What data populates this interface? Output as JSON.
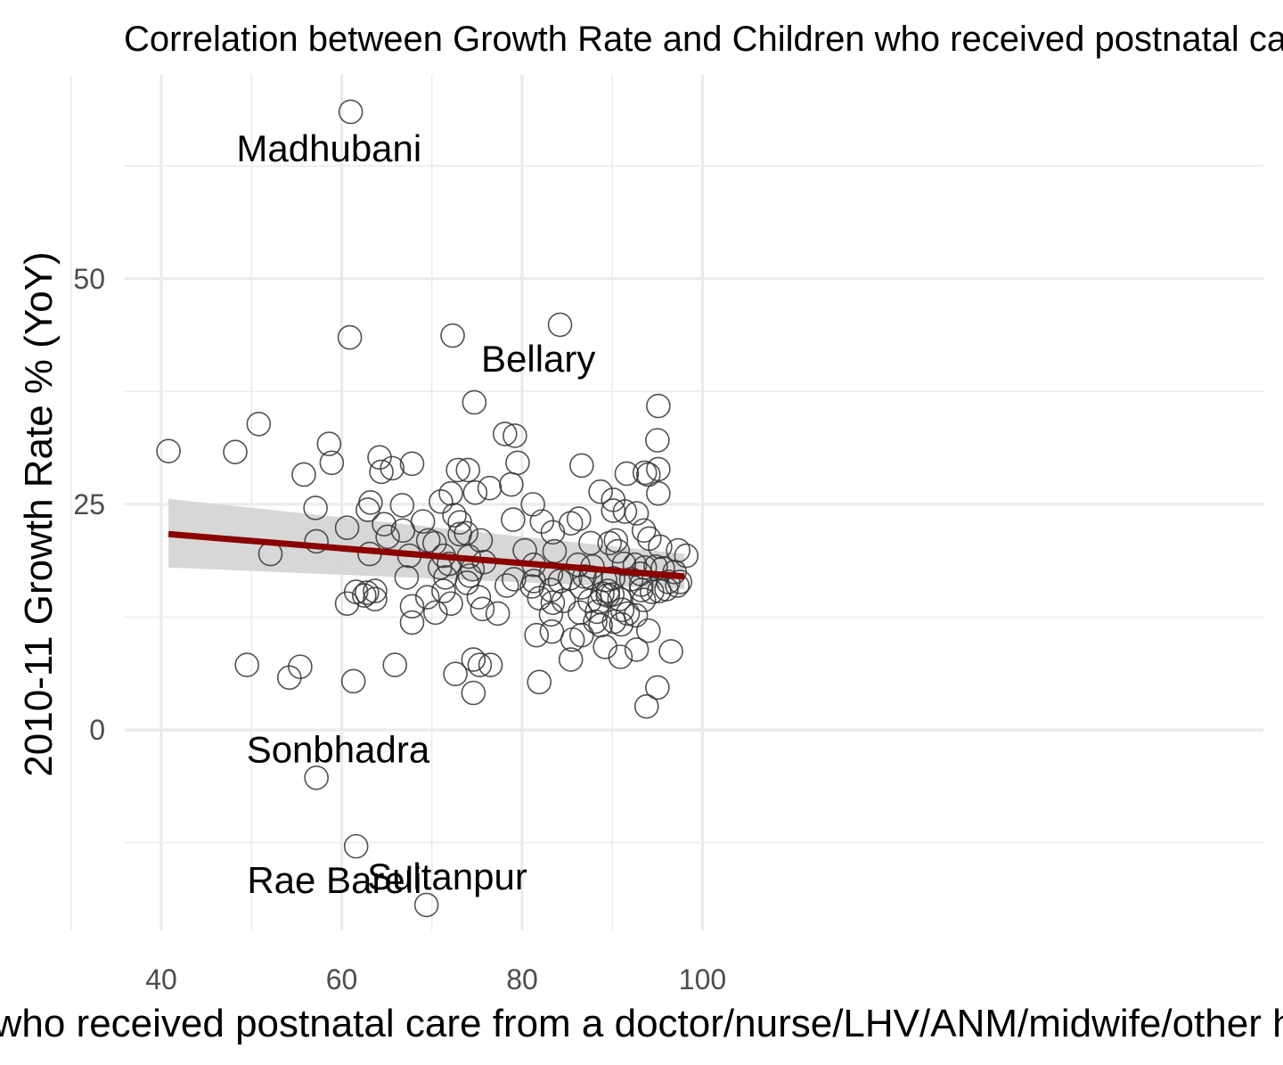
{
  "chart_data": {
    "type": "scatter",
    "title": "Correlation between Growth Rate and Children who received postnatal care",
    "xlabel": "Children who received postnatal care from a doctor/nurse/LHV/ANM/midwife/other health personnel",
    "ylabel": "2010-11 Growth Rate % (YoY)",
    "xlim": [
      40,
      100
    ],
    "ylim": [
      -22,
      73
    ],
    "x_ticks": [
      "40",
      "60",
      "80",
      "100"
    ],
    "y_ticks": [
      "0",
      "25",
      "50"
    ],
    "x_tick_values": [
      40,
      60,
      80,
      100
    ],
    "y_tick_values": [
      0,
      25,
      50
    ],
    "grid": true,
    "colors": {
      "trend": "#8b0000",
      "band": "#d3d3d3",
      "points": "#333333",
      "grid": "#ebebeb"
    },
    "trend": {
      "method": "linear",
      "x": [
        40.8,
        98.0
      ],
      "y": [
        21.7,
        17.0
      ],
      "band_lower": [
        18.0,
        15.6
      ],
      "band_upper": [
        25.6,
        19.5
      ]
    },
    "labels": [
      {
        "text": "Madhubani",
        "x": 58.6,
        "y": 64.5
      },
      {
        "text": "Bellary",
        "x": 81.8,
        "y": 41.2
      },
      {
        "text": "Sonbhadra",
        "x": 59.6,
        "y": -2.1
      },
      {
        "text": "Rae Bareli",
        "x": 59.2,
        "y": -16.6
      },
      {
        "text": "Sultanpur",
        "x": 71.7,
        "y": -16.2
      }
    ],
    "points": [
      [
        61.0,
        68.5
      ],
      [
        60.9,
        43.5
      ],
      [
        72.3,
        43.7
      ],
      [
        84.2,
        44.9
      ],
      [
        74.7,
        36.3
      ],
      [
        95.1,
        35.9
      ],
      [
        78.1,
        32.8
      ],
      [
        79.2,
        32.6
      ],
      [
        58.6,
        31.7
      ],
      [
        95.0,
        32.1
      ],
      [
        50.8,
        33.9
      ],
      [
        40.8,
        30.9
      ],
      [
        48.2,
        30.8
      ],
      [
        64.2,
        30.2
      ],
      [
        58.9,
        29.6
      ],
      [
        67.8,
        29.5
      ],
      [
        79.5,
        29.6
      ],
      [
        86.6,
        29.3
      ],
      [
        65.6,
        29.0
      ],
      [
        72.9,
        28.8
      ],
      [
        74.0,
        28.8
      ],
      [
        55.8,
        28.3
      ],
      [
        64.4,
        28.6
      ],
      [
        91.6,
        28.4
      ],
      [
        93.6,
        28.5
      ],
      [
        95.1,
        28.9
      ],
      [
        94.0,
        28.3
      ],
      [
        78.8,
        27.2
      ],
      [
        95.1,
        26.2
      ],
      [
        72.1,
        26.2
      ],
      [
        74.8,
        26.3
      ],
      [
        76.4,
        26.8
      ],
      [
        88.7,
        26.4
      ],
      [
        90.1,
        25.5
      ],
      [
        71.0,
        25.3
      ],
      [
        57.1,
        24.6
      ],
      [
        62.9,
        24.4
      ],
      [
        63.2,
        25.2
      ],
      [
        66.7,
        24.9
      ],
      [
        81.2,
        25.0
      ],
      [
        72.5,
        23.8
      ],
      [
        90.1,
        24.3
      ],
      [
        91.4,
        24.2
      ],
      [
        92.7,
        24.0
      ],
      [
        73.1,
        23.0
      ],
      [
        79.0,
        23.3
      ],
      [
        82.2,
        23.1
      ],
      [
        85.4,
        22.9
      ],
      [
        86.3,
        23.4
      ],
      [
        69.0,
        23.1
      ],
      [
        64.7,
        22.8
      ],
      [
        60.6,
        22.4
      ],
      [
        66.8,
        22.1
      ],
      [
        93.5,
        22.1
      ],
      [
        83.4,
        21.9
      ],
      [
        73.1,
        21.7
      ],
      [
        75.4,
        21.0
      ],
      [
        73.8,
        21.8
      ],
      [
        65.1,
        21.4
      ],
      [
        69.6,
        21.0
      ],
      [
        70.3,
        20.7
      ],
      [
        57.2,
        20.9
      ],
      [
        89.7,
        20.7
      ],
      [
        87.6,
        20.7
      ],
      [
        90.4,
        21.0
      ],
      [
        94.1,
        21.2
      ],
      [
        95.3,
        20.3
      ],
      [
        80.3,
        19.9
      ],
      [
        83.6,
        19.8
      ],
      [
        90.6,
        19.8
      ],
      [
        52.1,
        19.5
      ],
      [
        63.1,
        19.5
      ],
      [
        67.5,
        19.3
      ],
      [
        71.3,
        19.3
      ],
      [
        97.3,
        19.9
      ],
      [
        98.2,
        19.3
      ],
      [
        74.1,
        19.2
      ],
      [
        75.8,
        18.6
      ],
      [
        71.9,
        18.4
      ],
      [
        74.5,
        17.8
      ],
      [
        81.3,
        18.3
      ],
      [
        83.2,
        17.3
      ],
      [
        86.2,
        18.3
      ],
      [
        87.8,
        18.1
      ],
      [
        91.3,
        18.4
      ],
      [
        92.5,
        18.3
      ],
      [
        93.6,
        18.0
      ],
      [
        94.8,
        18.1
      ],
      [
        95.6,
        17.9
      ],
      [
        96.9,
        17.5
      ],
      [
        70.9,
        18.0
      ],
      [
        71.5,
        16.9
      ],
      [
        74.2,
        17.1
      ],
      [
        79.1,
        16.7
      ],
      [
        81.3,
        16.5
      ],
      [
        84.2,
        16.5
      ],
      [
        85.3,
        16.8
      ],
      [
        87.6,
        16.9
      ],
      [
        89.2,
        16.6
      ],
      [
        90.1,
        16.8
      ],
      [
        92.1,
        16.7
      ],
      [
        93.2,
        16.1
      ],
      [
        96.2,
        16.4
      ],
      [
        97.2,
        16.0
      ],
      [
        97.5,
        16.4
      ],
      [
        67.2,
        16.9
      ],
      [
        73.9,
        16.3
      ],
      [
        78.3,
        16.0
      ],
      [
        81.1,
        15.9
      ],
      [
        83.2,
        15.5
      ],
      [
        86.6,
        15.8
      ],
      [
        89.5,
        15.4
      ],
      [
        93.2,
        15.5
      ],
      [
        94.4,
        15.3
      ],
      [
        95.2,
        15.4
      ],
      [
        96.0,
        15.6
      ],
      [
        61.6,
        15.3
      ],
      [
        62.5,
        14.9
      ],
      [
        62.8,
        15.2
      ],
      [
        63.7,
        15.4
      ],
      [
        71.3,
        15.4
      ],
      [
        63.7,
        14.5
      ],
      [
        69.5,
        14.7
      ],
      [
        75.2,
        14.7
      ],
      [
        81.9,
        14.6
      ],
      [
        83.4,
        14.1
      ],
      [
        84.6,
        14.3
      ],
      [
        87.5,
        14.3
      ],
      [
        88.6,
        14.2
      ],
      [
        90.8,
        14.5
      ],
      [
        93.5,
        14.4
      ],
      [
        60.6,
        14.0
      ],
      [
        72.1,
        14.0
      ],
      [
        67.8,
        13.7
      ],
      [
        75.6,
        13.4
      ],
      [
        77.3,
        12.9
      ],
      [
        70.4,
        13.0
      ],
      [
        86.4,
        13.0
      ],
      [
        88.3,
        13.1
      ],
      [
        91.1,
        13.3
      ],
      [
        91.7,
        12.9
      ],
      [
        92.6,
        12.7
      ],
      [
        83.2,
        12.8
      ],
      [
        88.1,
        12.0
      ],
      [
        88.7,
        11.6
      ],
      [
        90.2,
        12.0
      ],
      [
        91.0,
        11.7
      ],
      [
        67.8,
        11.9
      ],
      [
        83.3,
        10.9
      ],
      [
        85.6,
        10.0
      ],
      [
        86.6,
        10.5
      ],
      [
        89.2,
        9.2
      ],
      [
        81.6,
        10.5
      ],
      [
        92.7,
        8.9
      ],
      [
        94.0,
        11.0
      ],
      [
        96.5,
        8.7
      ],
      [
        90.9,
        8.1
      ],
      [
        85.4,
        7.8
      ],
      [
        74.6,
        7.8
      ],
      [
        75.3,
        7.2
      ],
      [
        76.5,
        7.2
      ],
      [
        65.9,
        7.2
      ],
      [
        49.5,
        7.2
      ],
      [
        55.4,
        7.0
      ],
      [
        54.2,
        5.8
      ],
      [
        61.3,
        5.4
      ],
      [
        72.6,
        6.2
      ],
      [
        81.9,
        5.3
      ],
      [
        74.6,
        4.1
      ],
      [
        95.0,
        4.7
      ],
      [
        93.8,
        2.6
      ],
      [
        57.2,
        -5.3
      ],
      [
        61.6,
        -12.9
      ],
      [
        69.4,
        -19.4
      ],
      [
        89.5,
        14.9
      ],
      [
        88.9,
        15.1
      ],
      [
        90.0,
        15.0
      ],
      [
        93.1,
        17.3
      ],
      [
        86.9,
        17.0
      ]
    ]
  }
}
